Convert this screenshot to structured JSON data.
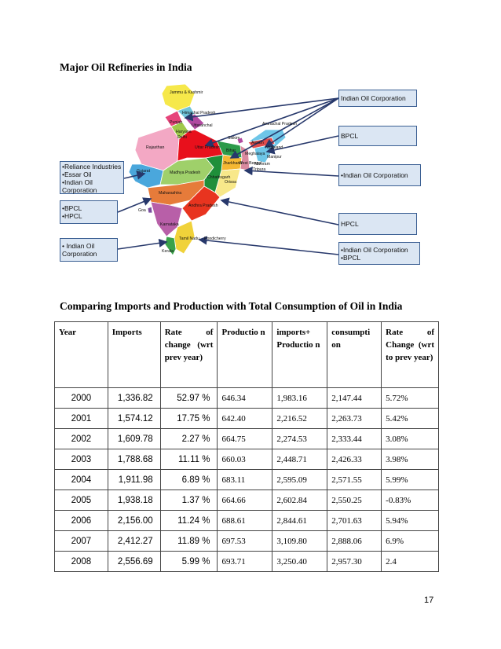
{
  "heading_map": "Major Oil Refineries in India",
  "heading_table": "Comparing Imports and Production with Total Consumption of Oil in India",
  "map": {
    "boxes": {
      "ioc_top": [
        "Indian Oil Corporation"
      ],
      "bpcl": [
        "BPCL"
      ],
      "left_top": [
        "•Reliance Industries",
        "•Essar Oil",
        "•Indian Oil",
        "Corporation"
      ],
      "ioc_mid": [
        "•Indian Oil Corporation"
      ],
      "left_mid": [
        "•BPCL",
        "•HPCL"
      ],
      "hpcl": [
        "HPCL"
      ],
      "left_bot": [
        "• Indian Oil",
        "Corporation"
      ],
      "right_bot": [
        "•Indian Oil Corporation",
        "•BPCL"
      ]
    },
    "labels": {
      "jk": "Jammu & Kashmir",
      "hp": "Himachal Pradesh",
      "punjab": "Punjab",
      "uttaranchal": "Uttaranchal",
      "haryana": "Haryana",
      "delhi": "Delhi",
      "rajasthan": "Rajasthan",
      "up": "Uttar Pradesh",
      "sikkim": "Sikkim",
      "arunachal": "Arunachal Pradesh",
      "assam": "Assam",
      "nagaland": "Nagaland",
      "meghalaya": "Meghalaya",
      "manipur": "Manipur",
      "mizoram": "Mizoram",
      "tripura": "Tripura",
      "bihar": "Bihar",
      "jharkhand": "Jharkhand",
      "wb": "West Bengal",
      "gujarat": "Gujarat",
      "mp": "Madhya Pradesh",
      "chhattisgarh": "Chhattisgarh",
      "orissa": "Orissa",
      "maharashtra": "Maharashtra",
      "goa": "Goa",
      "ap": "Andhra Pradesh",
      "karnataka": "Karnataka",
      "tn": "Tamil Nadu",
      "pondicherry": "Pondicherry",
      "kerala": "Kerala"
    },
    "colors": {
      "box_fill": "#dbe6f3",
      "box_border": "#3b5f93",
      "arrow": "#27386b"
    }
  },
  "table": {
    "headers": [
      "Year",
      "Imports",
      "Rate of change (wrt prev year)",
      "Productio n",
      "imports+ Productio n",
      "consumpti on",
      "Rate of Change (wrt to prev year)"
    ],
    "rows": [
      [
        "2000",
        "1,336.82",
        "52.97 %",
        "646.34",
        "1,983.16",
        "2,147.44",
        "5.72%"
      ],
      [
        "2001",
        "1,574.12",
        "17.75 %",
        "642.40",
        "2,216.52",
        "2,263.73",
        "5.42%"
      ],
      [
        "2002",
        "1,609.78",
        "2.27 %",
        "664.75",
        "2,274.53",
        "2,333.44",
        "3.08%"
      ],
      [
        "2003",
        "1,788.68",
        "11.11 %",
        "660.03",
        "2,448.71",
        "2,426.33",
        "3.98%"
      ],
      [
        "2004",
        "1,911.98",
        "6.89 %",
        "683.11",
        "2,595.09",
        "2,571.55",
        "5.99%"
      ],
      [
        "2005",
        "1,938.18",
        "1.37 %",
        "664.66",
        "2,602.84",
        "2,550.25",
        "-0.83%"
      ],
      [
        "2006",
        "2,156.00",
        "11.24 %",
        "688.61",
        "2,844.61",
        "2,701.63",
        "5.94%"
      ],
      [
        "2007",
        "2,412.27",
        "11.89 %",
        "697.53",
        "3,109.80",
        "2,888.06",
        "6.9%"
      ],
      [
        "2008",
        "2,556.69",
        "5.99 %",
        "693.71",
        "3,250.40",
        "2,957.30",
        "2.4"
      ]
    ]
  },
  "page_number": "17"
}
